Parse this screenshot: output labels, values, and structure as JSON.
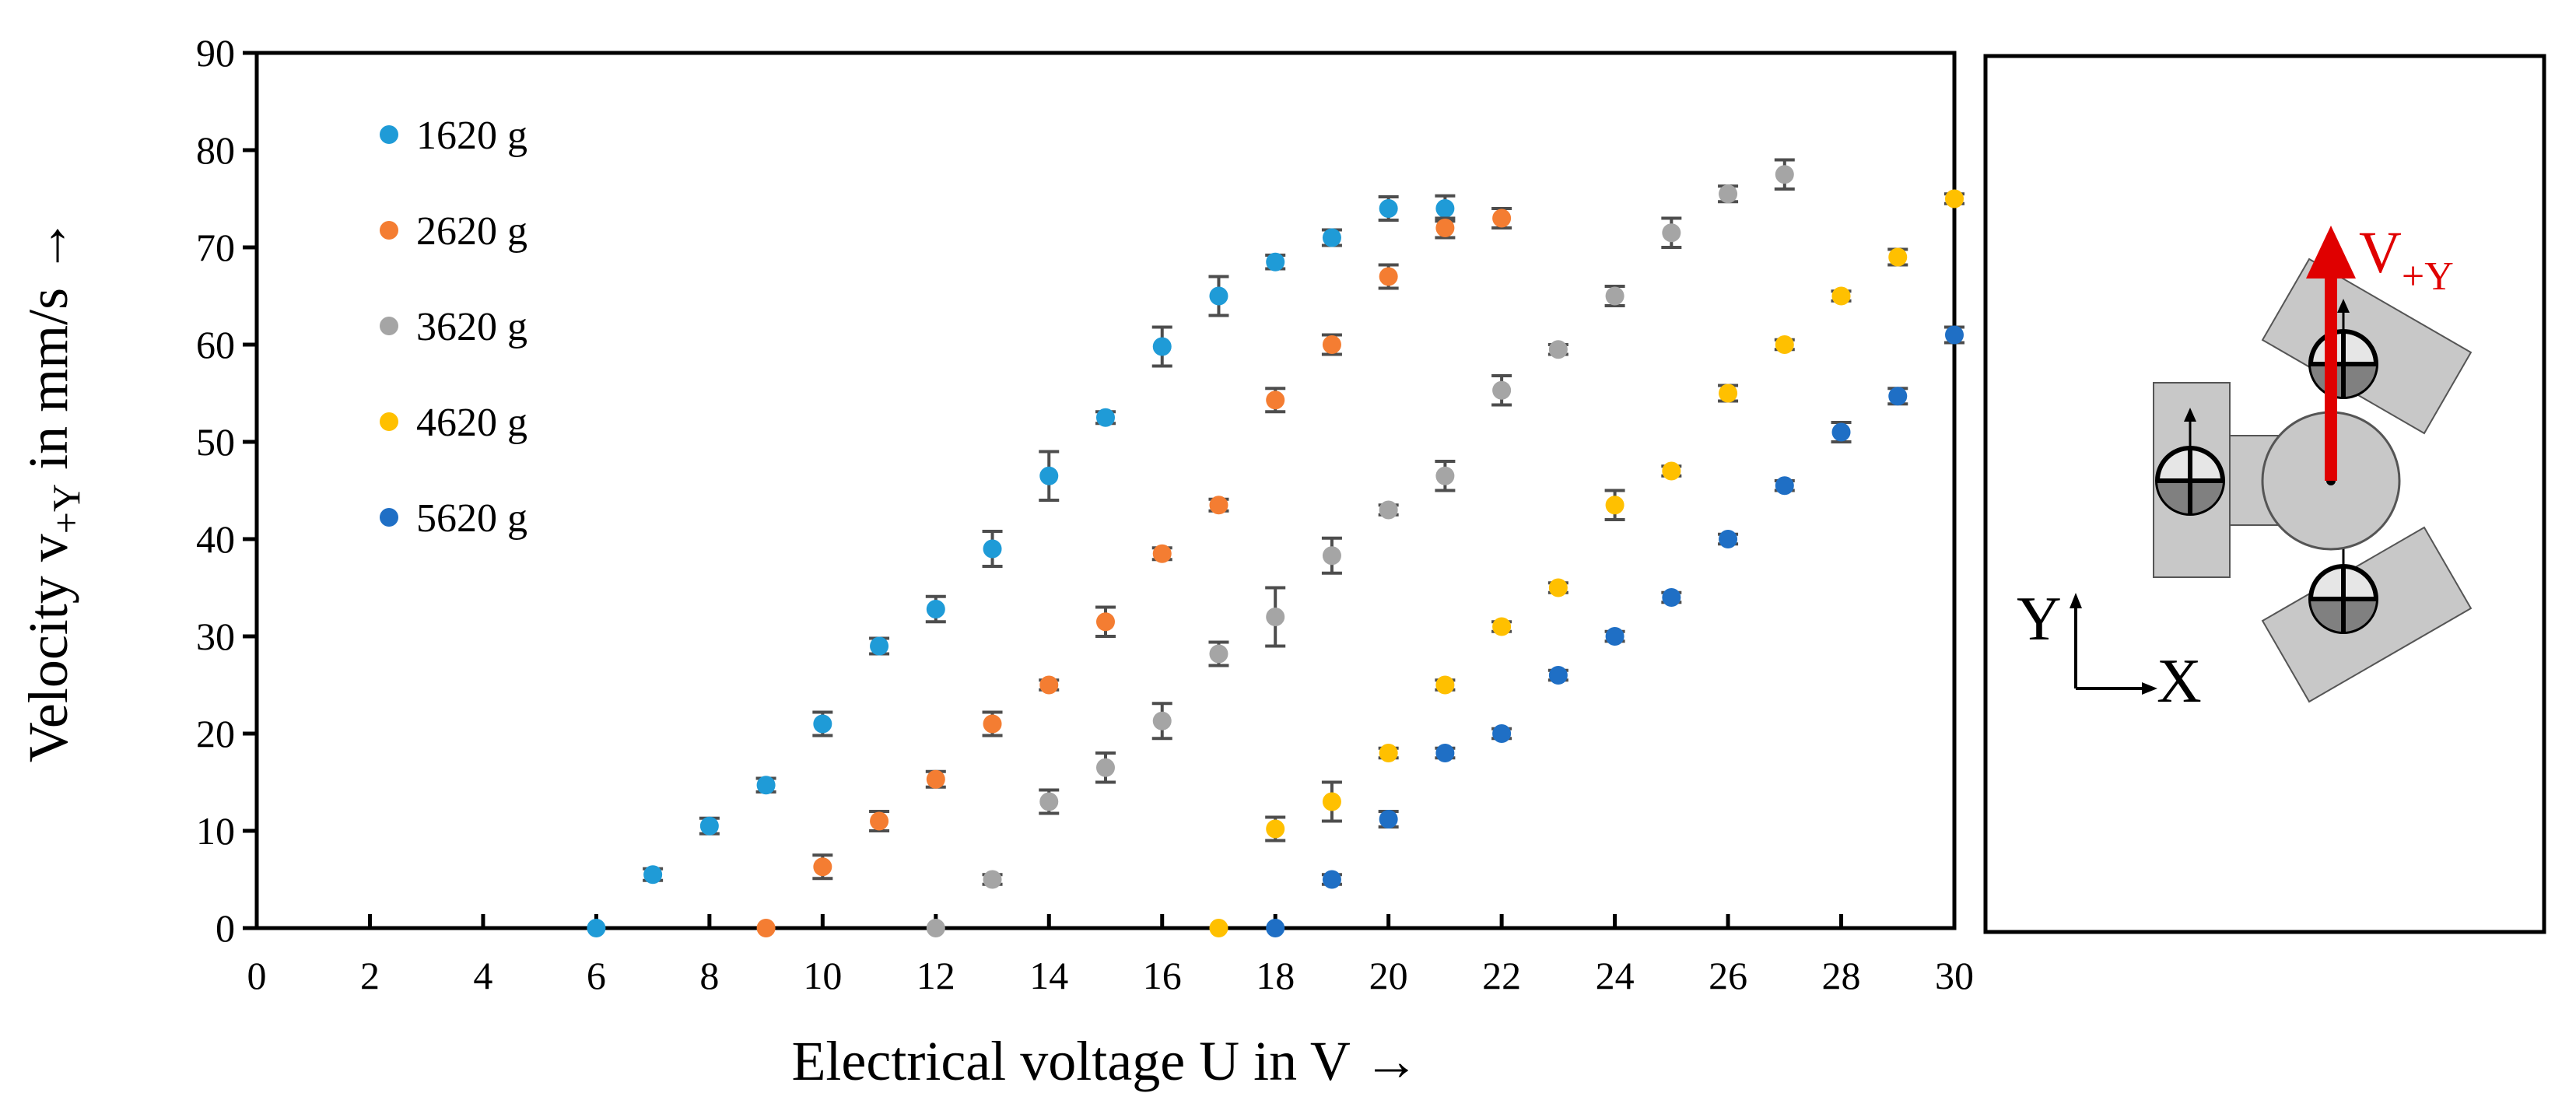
{
  "chart_data": {
    "type": "scatter",
    "title": "",
    "xlabel": "Electrical voltage U in V →",
    "ylabel": {
      "main": "Velocity v",
      "sub": "+Y",
      "rest": " in mm/s →"
    },
    "xlim": [
      0,
      30
    ],
    "ylim": [
      0,
      90
    ],
    "xticks": [
      0,
      2,
      4,
      6,
      8,
      10,
      12,
      14,
      16,
      18,
      20,
      22,
      24,
      26,
      28,
      30
    ],
    "yticks": [
      0,
      10,
      20,
      30,
      40,
      50,
      60,
      70,
      80,
      90
    ],
    "grid": false,
    "legend_position": "top-left",
    "error_bars": true,
    "series": [
      {
        "name": "1620 g",
        "color": "#1F9BD7",
        "x": [
          6,
          7,
          8,
          9,
          10,
          11,
          12,
          13,
          14,
          15,
          16,
          17,
          18,
          19,
          20,
          21
        ],
        "y": [
          0,
          5.5,
          10.5,
          14.7,
          21,
          29,
          32.8,
          39,
          46.5,
          52.5,
          59.8,
          65,
          68.5,
          71,
          74,
          74
        ],
        "err": [
          0,
          0.6,
          0.8,
          0.7,
          1.2,
          0.8,
          1.3,
          1.8,
          2.5,
          0.6,
          2,
          2,
          0.7,
          0.8,
          1.2,
          1.3
        ]
      },
      {
        "name": "2620 g",
        "color": "#F47D32",
        "x": [
          9,
          10,
          11,
          12,
          13,
          14,
          15,
          16,
          17,
          18,
          19,
          20,
          21,
          22
        ],
        "y": [
          0,
          6.3,
          11,
          15.3,
          21,
          25,
          31.5,
          38.5,
          43.5,
          54.3,
          60,
          67,
          72,
          73
        ],
        "err": [
          0,
          1.2,
          1,
          0.8,
          1.2,
          0.5,
          1.5,
          0.6,
          0.6,
          1.2,
          1,
          1.2,
          1,
          1
        ]
      },
      {
        "name": "3620 g",
        "color": "#A5A5A5",
        "x": [
          12,
          13,
          14,
          15,
          16,
          17,
          18,
          19,
          20,
          21,
          22,
          23,
          24,
          25,
          26,
          27
        ],
        "y": [
          0,
          5,
          13,
          16.5,
          21.3,
          28.2,
          32,
          38.3,
          43,
          46.5,
          55.3,
          59.5,
          65,
          71.5,
          75.5,
          77.5
        ],
        "err": [
          0,
          0.5,
          1.2,
          1.5,
          1.8,
          1.2,
          3,
          1.8,
          0.5,
          1.5,
          1.5,
          0.5,
          1,
          1.5,
          0.8,
          1.5
        ]
      },
      {
        "name": "4620 g",
        "color": "#FFC000",
        "x": [
          17,
          18,
          19,
          20,
          21,
          22,
          23,
          24,
          25,
          26,
          27,
          28,
          29,
          30
        ],
        "y": [
          0,
          10.2,
          13,
          18,
          25,
          31,
          35,
          43.5,
          47,
          55,
          60,
          65,
          69,
          75
        ],
        "err": [
          0,
          1.2,
          2,
          0.5,
          0.5,
          0.5,
          0.5,
          1.5,
          0.5,
          0.8,
          0.5,
          0.5,
          0.8,
          0.5
        ]
      },
      {
        "name": "5620 g",
        "color": "#1F6FC5",
        "x": [
          18,
          19,
          20,
          21,
          22,
          23,
          24,
          25,
          26,
          27,
          28,
          29,
          30
        ],
        "y": [
          0,
          5,
          11.2,
          18,
          20,
          26,
          30,
          34,
          40,
          45.5,
          51,
          54.7,
          61
        ],
        "err": [
          0,
          0.5,
          0.8,
          0.5,
          0.5,
          0.5,
          0.5,
          0.5,
          0.5,
          0.5,
          1,
          0.8,
          0.8
        ]
      }
    ]
  },
  "inset": {
    "velocity_label": {
      "main": "V",
      "sub": "+Y"
    },
    "arrow_color": "#E00000",
    "axis_y_label": "Y",
    "axis_x_label": "X",
    "body_color": "#C8C8C8",
    "wheel_color": "#808080"
  }
}
